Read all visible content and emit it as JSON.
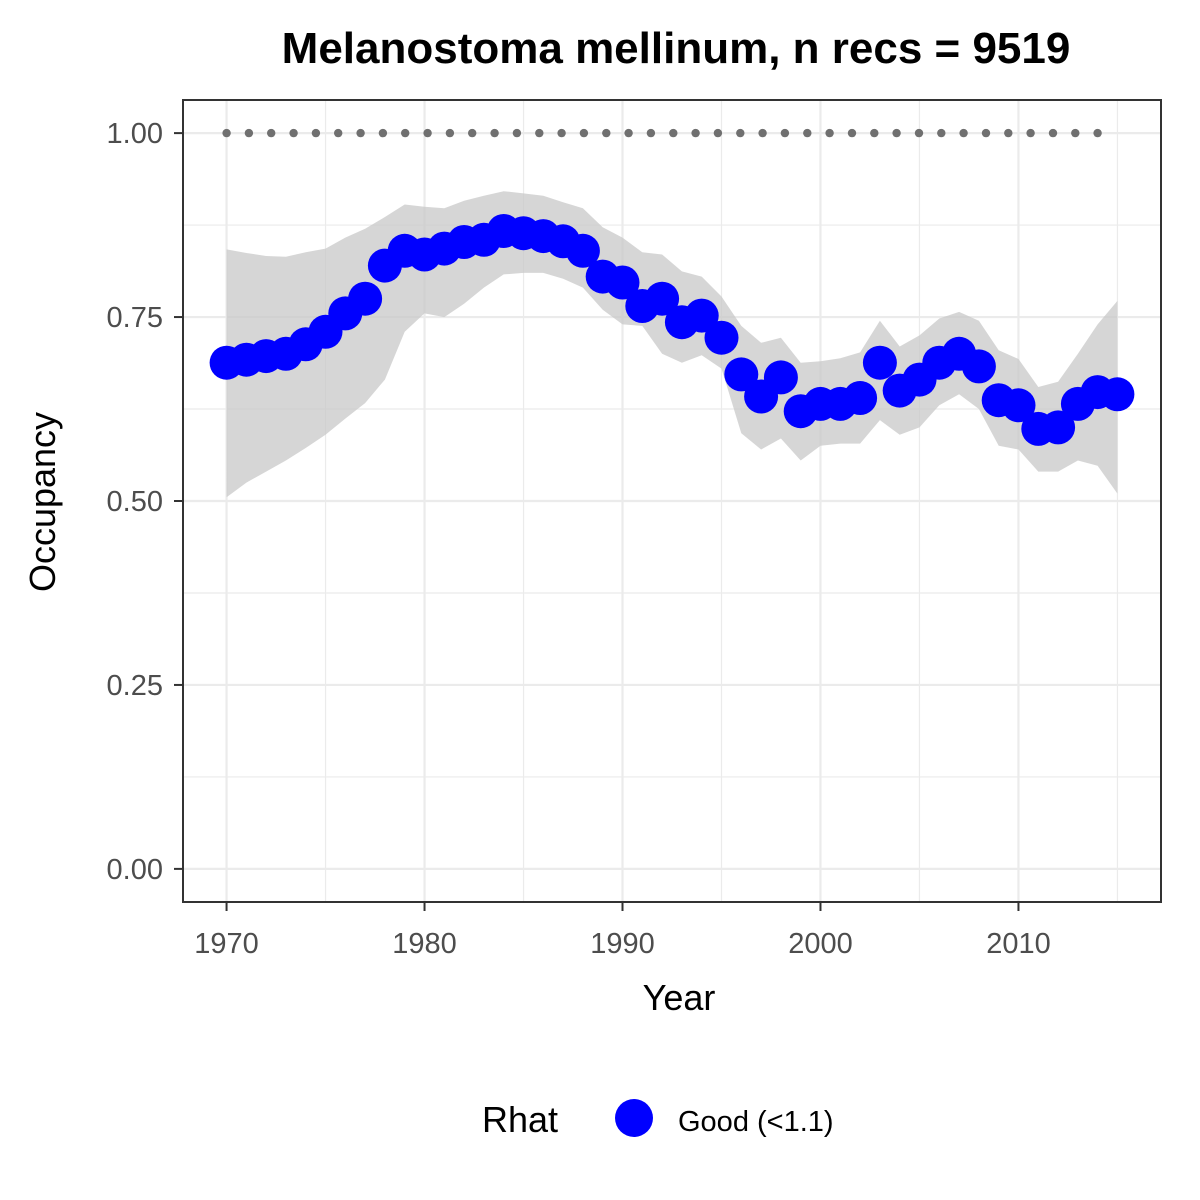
{
  "chart_data": {
    "type": "line",
    "title": "Melanostoma mellinum, n recs = 9519",
    "xlabel": "Year",
    "ylabel": "Occupancy",
    "xlim": [
      1967.8,
      2017.2
    ],
    "ylim": [
      -0.045,
      1.045
    ],
    "x_ticks": [
      1970,
      1980,
      1990,
      2000,
      2010
    ],
    "y_ticks": [
      0.0,
      0.25,
      0.5,
      0.75,
      1.0
    ],
    "x_tick_labels": [
      "1970",
      "1980",
      "1990",
      "2000",
      "2010"
    ],
    "y_tick_labels": [
      "0.00",
      "0.25",
      "0.50",
      "0.75",
      "1.00"
    ],
    "grid": true,
    "legend": {
      "position": "bottom",
      "title": "Rhat",
      "entries": [
        {
          "label": "Good (<1.1)",
          "color": "#0000ff"
        }
      ]
    },
    "colors": {
      "points": "#0000ff",
      "ribbon": "#c8c8c8",
      "reference_line": "#707070",
      "panel_border": "#333333",
      "grid": "#ebebeb"
    },
    "reference_line": {
      "y": 1.0,
      "x_start": 1970,
      "x_end": 2014,
      "style": "dotted"
    },
    "x": [
      1970,
      1971,
      1972,
      1973,
      1974,
      1975,
      1976,
      1977,
      1978,
      1979,
      1980,
      1981,
      1982,
      1983,
      1984,
      1985,
      1986,
      1987,
      1988,
      1989,
      1990,
      1991,
      1992,
      1993,
      1994,
      1995,
      1996,
      1997,
      1998,
      1999,
      2000,
      2001,
      2002,
      2003,
      2004,
      2005,
      2006,
      2007,
      2008,
      2009,
      2010,
      2011,
      2012,
      2013,
      2014,
      2015
    ],
    "series": [
      {
        "values": [
          0.688,
          0.692,
          0.697,
          0.7,
          0.713,
          0.73,
          0.755,
          0.775,
          0.82,
          0.84,
          0.835,
          0.843,
          0.852,
          0.855,
          0.867,
          0.864,
          0.86,
          0.853,
          0.84,
          0.805,
          0.797,
          0.765,
          0.775,
          0.743,
          0.752,
          0.722,
          0.672,
          0.642,
          0.668,
          0.622,
          0.632,
          0.632,
          0.64,
          0.688,
          0.65,
          0.665,
          0.688,
          0.7,
          0.683,
          0.637,
          0.63,
          0.598,
          0.6,
          0.632,
          0.648,
          0.645
        ],
        "lower": [
          0.505,
          0.525,
          0.54,
          0.555,
          0.572,
          0.59,
          0.612,
          0.633,
          0.665,
          0.73,
          0.755,
          0.75,
          0.768,
          0.79,
          0.808,
          0.81,
          0.81,
          0.802,
          0.79,
          0.76,
          0.74,
          0.738,
          0.7,
          0.688,
          0.698,
          0.68,
          0.592,
          0.57,
          0.585,
          0.555,
          0.575,
          0.578,
          0.578,
          0.61,
          0.59,
          0.6,
          0.63,
          0.645,
          0.625,
          0.575,
          0.57,
          0.54,
          0.54,
          0.555,
          0.548,
          0.51
        ],
        "upper": [
          0.842,
          0.837,
          0.833,
          0.832,
          0.838,
          0.843,
          0.858,
          0.87,
          0.886,
          0.903,
          0.9,
          0.898,
          0.908,
          0.915,
          0.921,
          0.918,
          0.915,
          0.906,
          0.898,
          0.872,
          0.858,
          0.838,
          0.835,
          0.812,
          0.805,
          0.778,
          0.738,
          0.715,
          0.722,
          0.688,
          0.69,
          0.694,
          0.702,
          0.745,
          0.71,
          0.725,
          0.748,
          0.757,
          0.745,
          0.705,
          0.693,
          0.655,
          0.662,
          0.7,
          0.74,
          0.772
        ]
      }
    ]
  }
}
